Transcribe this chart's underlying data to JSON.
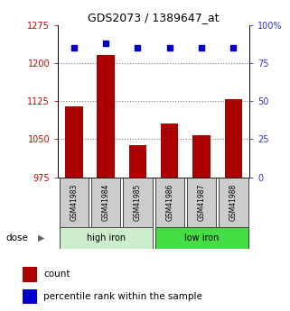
{
  "title": "GDS2073 / 1389647_at",
  "samples": [
    "GSM41983",
    "GSM41984",
    "GSM41985",
    "GSM41986",
    "GSM41987",
    "GSM41988"
  ],
  "count_values": [
    1115,
    1215,
    1038,
    1080,
    1057,
    1128
  ],
  "percentile_values": [
    85,
    88,
    85,
    85,
    85,
    85
  ],
  "ylim_left": [
    975,
    1275
  ],
  "ylim_right": [
    0,
    100
  ],
  "yticks_left": [
    975,
    1050,
    1125,
    1200,
    1275
  ],
  "yticks_right": [
    0,
    25,
    50,
    75,
    100
  ],
  "ytick_labels_right": [
    "0",
    "25",
    "50",
    "75",
    "100%"
  ],
  "bar_color": "#AA0000",
  "dot_color": "#0000CC",
  "group1_label": "high iron",
  "group2_label": "low iron",
  "group1_bg": "#CCEECC",
  "group2_bg": "#44DD44",
  "sample_box_bg": "#CCCCCC",
  "legend_count_label": "count",
  "legend_pct_label": "percentile rank within the sample",
  "dose_label": "dose",
  "background_color": "#ffffff",
  "dotted_line_color": "#777777",
  "ytick_color_left": "#CC0000",
  "ytick_color_right": "#3333CC",
  "grid_yticks": [
    1050,
    1125,
    1200
  ],
  "bar_width": 0.55
}
